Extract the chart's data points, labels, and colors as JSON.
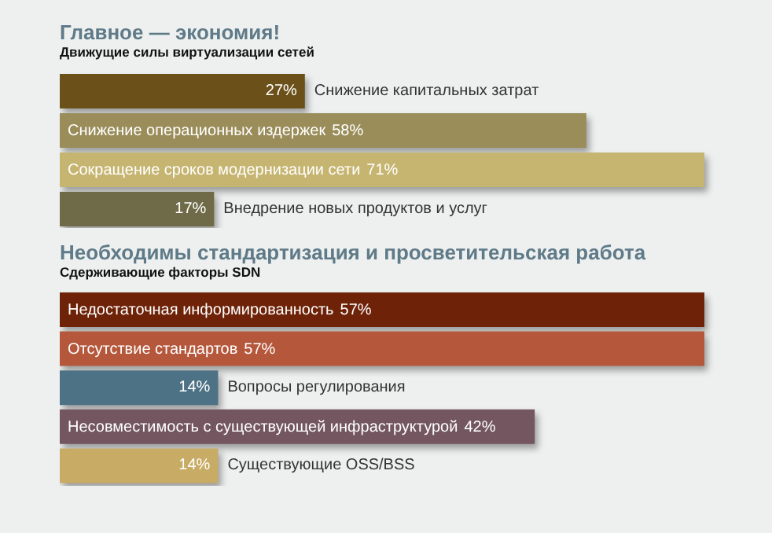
{
  "chart_data": [
    {
      "type": "bar",
      "orientation": "horizontal",
      "title": "Главное — экономия!",
      "subtitle": "Движущие силы виртуализации сетей",
      "categories": [
        "Снижение капитальных затрат",
        "Снижение операционных издержек",
        "Сокращение сроков модернизации сети",
        "Внедрение новых продуктов и услуг"
      ],
      "values": [
        27,
        58,
        71,
        17
      ],
      "value_labels": [
        "27%",
        "58%",
        "71%",
        "17%"
      ],
      "colors": [
        "#6b5119",
        "#9a8d5a",
        "#c6b571",
        "#6f6a48"
      ]
    },
    {
      "type": "bar",
      "orientation": "horizontal",
      "title": "Необходимы стандартизация и просветительская работа",
      "subtitle": "Сдерживающие факторы SDN",
      "categories": [
        "Недостаточная информированность",
        "Отсутствие стандартов",
        "Вопросы регулирования",
        "Несовместимость с существующей инфраструктурой",
        "Существующие OSS/BSS"
      ],
      "values": [
        57,
        57,
        14,
        42,
        14
      ],
      "value_labels": [
        "57%",
        "57%",
        "14%",
        "42%",
        "14%"
      ],
      "colors": [
        "#6e2208",
        "#b5573b",
        "#4e7285",
        "#735660",
        "#c8ab64"
      ]
    }
  ]
}
